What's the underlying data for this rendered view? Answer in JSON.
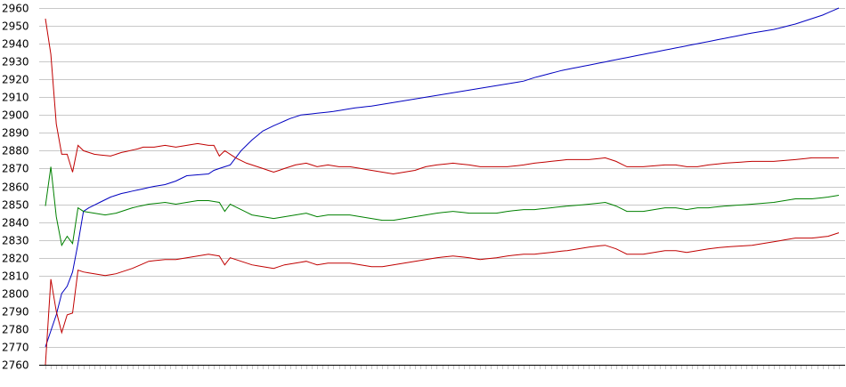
{
  "chart_data": {
    "type": "line",
    "title": "",
    "xlabel": "",
    "ylabel": "",
    "ylim": [
      2760,
      2960
    ],
    "yticks": [
      2760,
      2770,
      2780,
      2790,
      2800,
      2810,
      2820,
      2830,
      2840,
      2850,
      2860,
      2870,
      2880,
      2890,
      2900,
      2910,
      2920,
      2930,
      2940,
      2950,
      2960
    ],
    "grid": true,
    "legend": "none",
    "point_count": 147,
    "series": [
      {
        "color": "#0000c0",
        "points": [
          [
            0,
            2770
          ],
          [
            2,
            2788
          ],
          [
            3,
            2800
          ],
          [
            4,
            2804
          ],
          [
            5,
            2812
          ],
          [
            6,
            2828
          ],
          [
            7,
            2846
          ],
          [
            8,
            2848
          ],
          [
            10,
            2851
          ],
          [
            12,
            2854
          ],
          [
            14,
            2856
          ],
          [
            17,
            2858
          ],
          [
            20,
            2860
          ],
          [
            22,
            2861
          ],
          [
            24,
            2863
          ],
          [
            26,
            2866
          ],
          [
            30,
            2867
          ],
          [
            31,
            2869
          ],
          [
            34,
            2872
          ],
          [
            36,
            2880
          ],
          [
            38,
            2886
          ],
          [
            40,
            2891
          ],
          [
            42,
            2894
          ],
          [
            45,
            2898
          ],
          [
            47,
            2900
          ],
          [
            50,
            2901
          ],
          [
            53,
            2902
          ],
          [
            57,
            2904
          ],
          [
            60,
            2905
          ],
          [
            64,
            2907
          ],
          [
            68,
            2909
          ],
          [
            72,
            2911
          ],
          [
            76,
            2913
          ],
          [
            80,
            2915
          ],
          [
            84,
            2917
          ],
          [
            88,
            2919
          ],
          [
            90,
            2921
          ],
          [
            95,
            2925
          ],
          [
            100,
            2928
          ],
          [
            105,
            2931
          ],
          [
            110,
            2934
          ],
          [
            115,
            2937
          ],
          [
            120,
            2940
          ],
          [
            125,
            2943
          ],
          [
            130,
            2946
          ],
          [
            134,
            2948
          ],
          [
            138,
            2951
          ],
          [
            140,
            2953
          ],
          [
            143,
            2956
          ],
          [
            146,
            2960
          ]
        ]
      },
      {
        "color": "#c00000",
        "points": [
          [
            0,
            2954
          ],
          [
            1,
            2934
          ],
          [
            2,
            2895
          ],
          [
            3,
            2878
          ],
          [
            4,
            2878
          ],
          [
            5,
            2868
          ],
          [
            6,
            2883
          ],
          [
            7,
            2880
          ],
          [
            8,
            2879
          ],
          [
            9,
            2878
          ],
          [
            12,
            2877
          ],
          [
            14,
            2879
          ],
          [
            17,
            2881
          ],
          [
            18,
            2882
          ],
          [
            20,
            2882
          ],
          [
            22,
            2883
          ],
          [
            24,
            2882
          ],
          [
            26,
            2883
          ],
          [
            28,
            2884
          ],
          [
            30,
            2883
          ],
          [
            31,
            2883
          ],
          [
            32,
            2877
          ],
          [
            33,
            2880
          ],
          [
            35,
            2876
          ],
          [
            37,
            2873
          ],
          [
            40,
            2870
          ],
          [
            42,
            2868
          ],
          [
            44,
            2870
          ],
          [
            46,
            2872
          ],
          [
            48,
            2873
          ],
          [
            50,
            2871
          ],
          [
            52,
            2872
          ],
          [
            54,
            2871
          ],
          [
            56,
            2871
          ],
          [
            58,
            2870
          ],
          [
            60,
            2869
          ],
          [
            62,
            2868
          ],
          [
            64,
            2867
          ],
          [
            66,
            2868
          ],
          [
            68,
            2869
          ],
          [
            70,
            2871
          ],
          [
            72,
            2872
          ],
          [
            75,
            2873
          ],
          [
            78,
            2872
          ],
          [
            80,
            2871
          ],
          [
            83,
            2871
          ],
          [
            85,
            2871
          ],
          [
            88,
            2872
          ],
          [
            90,
            2873
          ],
          [
            93,
            2874
          ],
          [
            96,
            2875
          ],
          [
            100,
            2875
          ],
          [
            103,
            2876
          ],
          [
            105,
            2874
          ],
          [
            107,
            2871
          ],
          [
            110,
            2871
          ],
          [
            114,
            2872
          ],
          [
            116,
            2872
          ],
          [
            118,
            2871
          ],
          [
            120,
            2871
          ],
          [
            122,
            2872
          ],
          [
            125,
            2873
          ],
          [
            130,
            2874
          ],
          [
            134,
            2874
          ],
          [
            138,
            2875
          ],
          [
            141,
            2876
          ],
          [
            144,
            2876
          ],
          [
            146,
            2876
          ]
        ]
      },
      {
        "color": "#008000",
        "points": [
          [
            0,
            2849
          ],
          [
            1,
            2871
          ],
          [
            2,
            2843
          ],
          [
            3,
            2827
          ],
          [
            4,
            2832
          ],
          [
            5,
            2828
          ],
          [
            6,
            2848
          ],
          [
            7,
            2846
          ],
          [
            9,
            2845
          ],
          [
            11,
            2844
          ],
          [
            13,
            2845
          ],
          [
            16,
            2848
          ],
          [
            19,
            2850
          ],
          [
            22,
            2851
          ],
          [
            24,
            2850
          ],
          [
            26,
            2851
          ],
          [
            28,
            2852
          ],
          [
            30,
            2852
          ],
          [
            32,
            2851
          ],
          [
            33,
            2846
          ],
          [
            34,
            2850
          ],
          [
            36,
            2847
          ],
          [
            38,
            2844
          ],
          [
            40,
            2843
          ],
          [
            42,
            2842
          ],
          [
            44,
            2843
          ],
          [
            46,
            2844
          ],
          [
            48,
            2845
          ],
          [
            50,
            2843
          ],
          [
            52,
            2844
          ],
          [
            54,
            2844
          ],
          [
            56,
            2844
          ],
          [
            58,
            2843
          ],
          [
            60,
            2842
          ],
          [
            62,
            2841
          ],
          [
            64,
            2841
          ],
          [
            66,
            2842
          ],
          [
            68,
            2843
          ],
          [
            70,
            2844
          ],
          [
            72,
            2845
          ],
          [
            75,
            2846
          ],
          [
            78,
            2845
          ],
          [
            80,
            2845
          ],
          [
            83,
            2845
          ],
          [
            85,
            2846
          ],
          [
            88,
            2847
          ],
          [
            90,
            2847
          ],
          [
            93,
            2848
          ],
          [
            96,
            2849
          ],
          [
            100,
            2850
          ],
          [
            103,
            2851
          ],
          [
            105,
            2849
          ],
          [
            107,
            2846
          ],
          [
            110,
            2846
          ],
          [
            114,
            2848
          ],
          [
            116,
            2848
          ],
          [
            118,
            2847
          ],
          [
            120,
            2848
          ],
          [
            122,
            2848
          ],
          [
            125,
            2849
          ],
          [
            130,
            2850
          ],
          [
            134,
            2851
          ],
          [
            138,
            2853
          ],
          [
            141,
            2853
          ],
          [
            144,
            2854
          ],
          [
            146,
            2855
          ]
        ]
      },
      {
        "color": "#c00000",
        "points": [
          [
            0,
            2760
          ],
          [
            1,
            2808
          ],
          [
            2,
            2790
          ],
          [
            3,
            2778
          ],
          [
            4,
            2788
          ],
          [
            5,
            2789
          ],
          [
            6,
            2813
          ],
          [
            7,
            2812
          ],
          [
            9,
            2811
          ],
          [
            11,
            2810
          ],
          [
            13,
            2811
          ],
          [
            16,
            2814
          ],
          [
            19,
            2818
          ],
          [
            22,
            2819
          ],
          [
            24,
            2819
          ],
          [
            26,
            2820
          ],
          [
            28,
            2821
          ],
          [
            30,
            2822
          ],
          [
            32,
            2821
          ],
          [
            33,
            2816
          ],
          [
            34,
            2820
          ],
          [
            36,
            2818
          ],
          [
            38,
            2816
          ],
          [
            40,
            2815
          ],
          [
            42,
            2814
          ],
          [
            44,
            2816
          ],
          [
            46,
            2817
          ],
          [
            48,
            2818
          ],
          [
            50,
            2816
          ],
          [
            52,
            2817
          ],
          [
            54,
            2817
          ],
          [
            56,
            2817
          ],
          [
            58,
            2816
          ],
          [
            60,
            2815
          ],
          [
            62,
            2815
          ],
          [
            64,
            2816
          ],
          [
            66,
            2817
          ],
          [
            68,
            2818
          ],
          [
            70,
            2819
          ],
          [
            72,
            2820
          ],
          [
            75,
            2821
          ],
          [
            78,
            2820
          ],
          [
            80,
            2819
          ],
          [
            83,
            2820
          ],
          [
            85,
            2821
          ],
          [
            88,
            2822
          ],
          [
            90,
            2822
          ],
          [
            93,
            2823
          ],
          [
            96,
            2824
          ],
          [
            100,
            2826
          ],
          [
            103,
            2827
          ],
          [
            105,
            2825
          ],
          [
            107,
            2822
          ],
          [
            110,
            2822
          ],
          [
            114,
            2824
          ],
          [
            116,
            2824
          ],
          [
            118,
            2823
          ],
          [
            120,
            2824
          ],
          [
            122,
            2825
          ],
          [
            125,
            2826
          ],
          [
            130,
            2827
          ],
          [
            134,
            2829
          ],
          [
            138,
            2831
          ],
          [
            141,
            2831
          ],
          [
            144,
            2832
          ],
          [
            146,
            2834
          ]
        ]
      }
    ]
  }
}
